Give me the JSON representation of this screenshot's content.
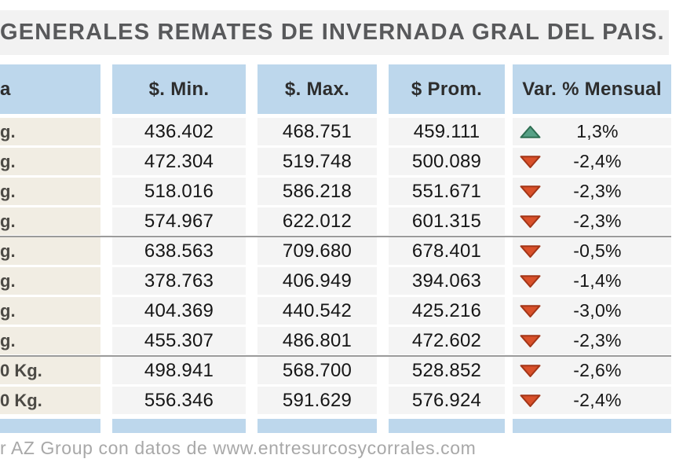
{
  "chart_data": {
    "type": "table",
    "title": "GENERALES REMATES DE INVERNADA GRAL DEL PAIS.",
    "columns": [
      "a",
      "$. Min.",
      "$. Max.",
      "$ Prom.",
      "Var. % Mensual"
    ],
    "rows": [
      {
        "category": "g.",
        "min": "436.402",
        "max": "468.751",
        "prom": "459.111",
        "trend": "up",
        "var_pct": "1,3%"
      },
      {
        "category": "g.",
        "min": "472.304",
        "max": "519.748",
        "prom": "500.089",
        "trend": "down",
        "var_pct": "-2,4%"
      },
      {
        "category": "g.",
        "min": "518.016",
        "max": "586.218",
        "prom": "551.671",
        "trend": "down",
        "var_pct": "-2,3%"
      },
      {
        "category": "g.",
        "min": "574.967",
        "max": "622.012",
        "prom": "601.315",
        "trend": "down",
        "var_pct": "-2,3%"
      },
      {
        "category": "g.",
        "min": "638.563",
        "max": "709.680",
        "prom": "678.401",
        "trend": "down",
        "var_pct": "-0,5%"
      },
      {
        "category": "g.",
        "min": "378.763",
        "max": "406.949",
        "prom": "394.063",
        "trend": "down",
        "var_pct": "-1,4%"
      },
      {
        "category": "g.",
        "min": "404.369",
        "max": "440.542",
        "prom": "425.216",
        "trend": "down",
        "var_pct": "-3,0%"
      },
      {
        "category": "g.",
        "min": "455.307",
        "max": "486.801",
        "prom": "472.602",
        "trend": "down",
        "var_pct": "-2,3%"
      },
      {
        "category": "0 Kg.",
        "min": "498.941",
        "max": "568.700",
        "prom": "528.852",
        "trend": "down",
        "var_pct": "-2,6%"
      },
      {
        "category": "0 Kg.",
        "min": "556.346",
        "max": "591.629",
        "prom": "576.924",
        "trend": "down",
        "var_pct": "-2,4%"
      }
    ],
    "group_dividers_after_rows": [
      4,
      8
    ],
    "source_note": "r AZ Group con datos de www.entresurcosycorrales.com",
    "legend": {
      "up_means": "monthly increase",
      "down_means": "monthly decrease"
    }
  },
  "colors": {
    "title_bar_bg": "#f2f2f2",
    "title_text": "#58595b",
    "header_bg": "#bdd7ec",
    "header_text": "#2d2d2d",
    "category_cell_bg": "#f1ede3",
    "category_text": "#4c4a45",
    "value_cell_bg": "#f4f4f4",
    "value_text": "#161616",
    "divider": "#9b9b9b",
    "up_arrow": "#57a186",
    "up_arrow_border": "#2e6e52",
    "down_arrow": "#d8502a",
    "down_arrow_border": "#a33517",
    "footer_text": "#a8a8a8"
  }
}
